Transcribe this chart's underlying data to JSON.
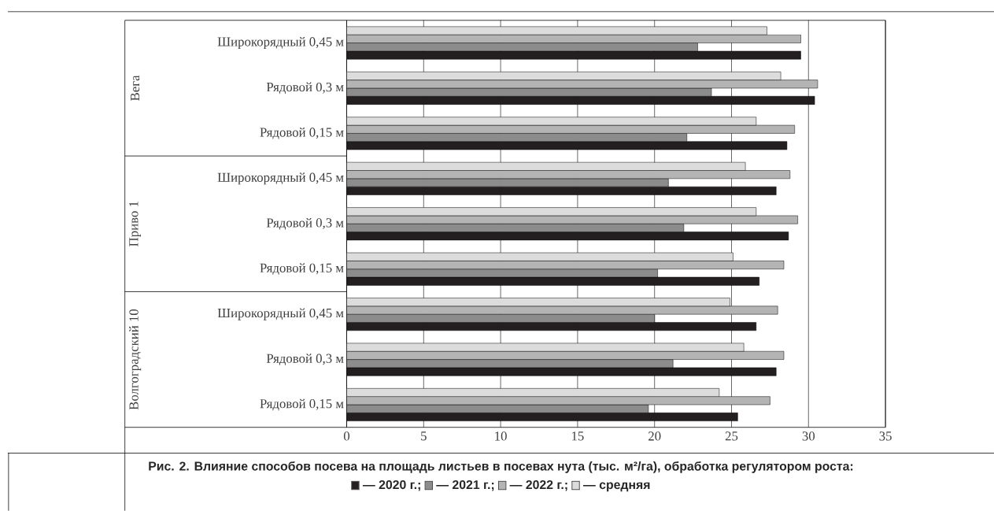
{
  "chart_data": {
    "type": "bar",
    "orientation": "horizontal",
    "title": "Рис. 2. Влияние способов посева на площадь листьев в посевах нута (тыс. м²/га), обработка регулятором роста:",
    "categories": [
      "Широкорядный  0,45 м",
      "Рядовой  0,3 м",
      "Рядовой  0,15 м",
      "Широкорядный  0,45 м",
      "Рядовой  0,3 м",
      "Рядовой  0,15 м",
      "Широкорядный  0,45 м",
      "Рядовой  0,3 м",
      "Рядовой  0,15 м"
    ],
    "annotations": [
      "Вега",
      "Приво 1",
      "Волгоградский 10"
    ],
    "series": [
      {
        "name": "— 2020 г.;",
        "color": "#231f20",
        "values": [
          29.5,
          30.4,
          28.6,
          27.9,
          28.7,
          26.8,
          26.6,
          27.9,
          25.4
        ]
      },
      {
        "name": "— 2021 г.;",
        "color": "#8c8c8c",
        "values": [
          22.8,
          23.7,
          22.1,
          20.9,
          21.9,
          20.2,
          20.0,
          21.2,
          19.6
        ]
      },
      {
        "name": "— 2022 г.;",
        "color": "#b4b4b4",
        "values": [
          29.5,
          30.6,
          29.1,
          28.8,
          29.3,
          28.4,
          28.0,
          28.4,
          27.5
        ]
      },
      {
        "name": "— средняя",
        "color": "#dcdcdc",
        "values": [
          27.3,
          28.2,
          26.6,
          25.9,
          26.6,
          25.1,
          24.9,
          25.8,
          24.2
        ]
      }
    ],
    "xlim": [
      0,
      35
    ],
    "xticks": [
      0,
      5,
      10,
      15,
      20,
      25,
      30,
      35
    ],
    "grid": "x",
    "legend": "bottom"
  }
}
